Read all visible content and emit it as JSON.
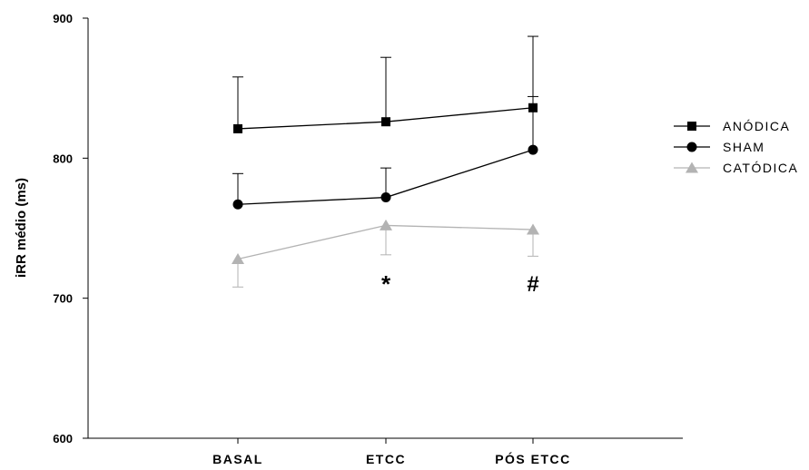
{
  "chart_data": {
    "type": "line",
    "ylabel": "iRR médio (ms)",
    "xlabel": "",
    "ylim": [
      600,
      900
    ],
    "yticks": [
      600,
      700,
      800,
      900
    ],
    "categories": [
      "BASAL",
      "ETCC",
      "PÓS ETCC"
    ],
    "grid": false,
    "legend_position": "right",
    "series": [
      {
        "name": "ANÓDICA",
        "marker": "square",
        "color": "#000000",
        "values": [
          821,
          826,
          836
        ],
        "error": [
          37,
          46,
          51
        ],
        "error_direction": "up"
      },
      {
        "name": "SHAM",
        "marker": "circle",
        "color": "#000000",
        "values": [
          767,
          772,
          806
        ],
        "error": [
          22,
          21,
          38
        ],
        "error_direction": "up"
      },
      {
        "name": "CATÓDICA",
        "marker": "triangle",
        "color": "#b3b3b3",
        "values": [
          728,
          752,
          749
        ],
        "error": [
          20,
          21,
          19
        ],
        "error_direction": "down"
      }
    ],
    "annotations": [
      {
        "text": "*",
        "category": "ETCC"
      },
      {
        "text": "#",
        "category": "PÓS ETCC"
      }
    ]
  }
}
